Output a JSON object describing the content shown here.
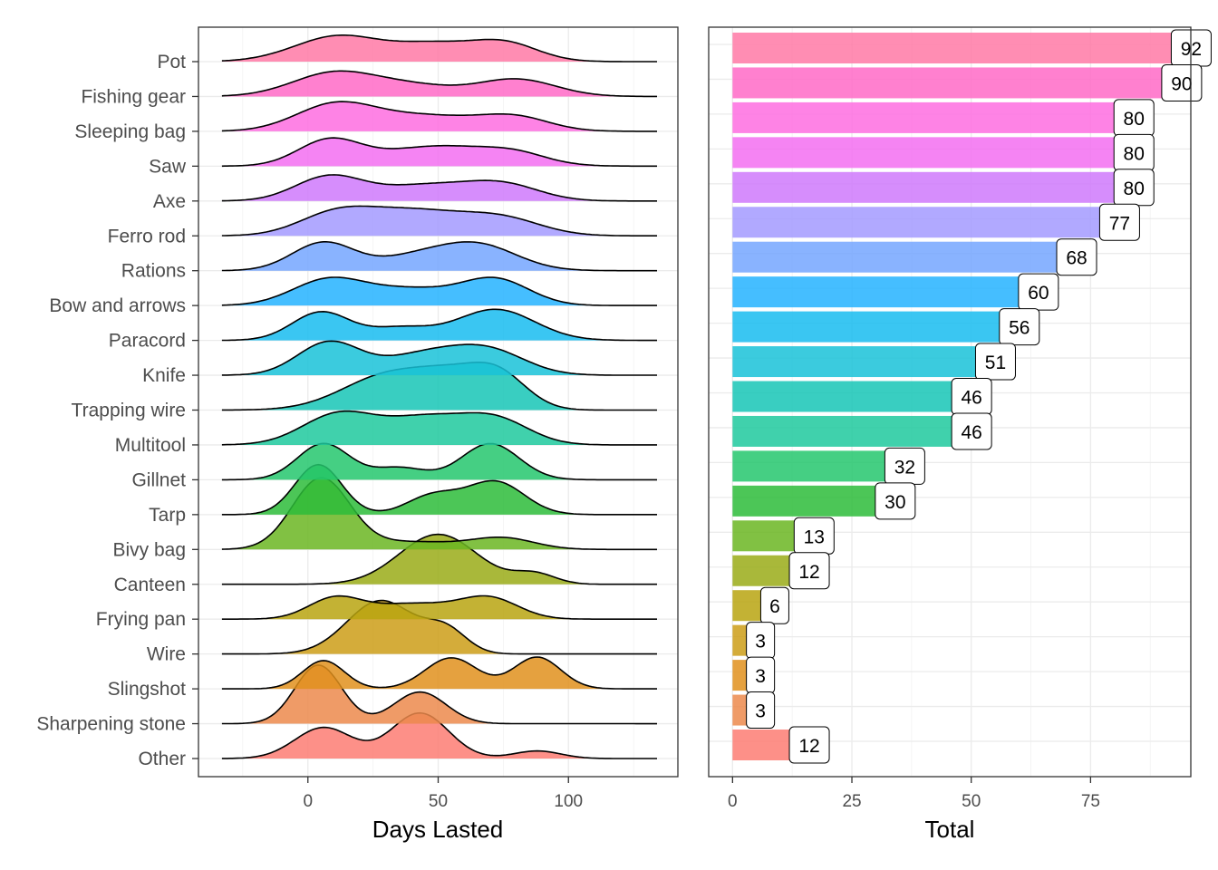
{
  "chart_data": [
    {
      "type": "ridgeline",
      "xlabel": "Days Lasted",
      "xlim": [
        -42,
        142
      ],
      "xticks": [
        0,
        50,
        100
      ],
      "grid": true,
      "categories": [
        "Pot",
        "Fishing gear",
        "Sleeping bag",
        "Saw",
        "Axe",
        "Ferro rod",
        "Rations",
        "Bow and arrows",
        "Paracord",
        "Knife",
        "Trapping wire",
        "Multitool",
        "Gillnet",
        "Tarp",
        "Bivy bag",
        "Canteen",
        "Frying pan",
        "Wire",
        "Slingshot",
        "Sharpening stone",
        "Other"
      ],
      "series": [
        {
          "category": "Pot",
          "peaks": [
            [
              12,
              0.75,
              17
            ],
            [
              48,
              0.45,
              14
            ],
            [
              75,
              0.55,
              13
            ]
          ]
        },
        {
          "category": "Fishing gear",
          "peaks": [
            [
              10,
              0.68,
              16
            ],
            [
              40,
              0.3,
              16
            ],
            [
              80,
              0.5,
              15
            ]
          ]
        },
        {
          "category": "Sleeping bag",
          "peaks": [
            [
              10,
              0.72,
              15
            ],
            [
              45,
              0.45,
              22
            ],
            [
              80,
              0.35,
              13
            ]
          ]
        },
        {
          "category": "Saw",
          "peaks": [
            [
              8,
              0.72,
              12
            ],
            [
              50,
              0.58,
              22
            ],
            [
              80,
              0.25,
              12
            ]
          ]
        },
        {
          "category": "Axe",
          "peaks": [
            [
              8,
              0.7,
              13
            ],
            [
              45,
              0.45,
              18
            ],
            [
              75,
              0.45,
              14
            ]
          ]
        },
        {
          "category": "Ferro rod",
          "peaks": [
            [
              10,
              0.55,
              14
            ],
            [
              40,
              0.72,
              20
            ],
            [
              75,
              0.45,
              15
            ]
          ]
        },
        {
          "category": "Rations",
          "peaks": [
            [
              6,
              0.82,
              12
            ],
            [
              40,
              0.35,
              14
            ],
            [
              65,
              0.75,
              15
            ]
          ]
        },
        {
          "category": "Bow and arrows",
          "peaks": [
            [
              8,
              0.75,
              14
            ],
            [
              40,
              0.45,
              16
            ],
            [
              72,
              0.75,
              13
            ]
          ]
        },
        {
          "category": "Paracord",
          "peaks": [
            [
              5,
              0.82,
              11
            ],
            [
              35,
              0.35,
              12
            ],
            [
              72,
              0.9,
              15
            ]
          ]
        },
        {
          "category": "Knife",
          "peaks": [
            [
              8,
              0.95,
              12
            ],
            [
              45,
              0.6,
              16
            ],
            [
              70,
              0.65,
              14
            ]
          ]
        },
        {
          "category": "Trapping wire",
          "peaks": [
            [
              32,
              1.05,
              18
            ],
            [
              55,
              0.6,
              12
            ],
            [
              73,
              1.0,
              11
            ]
          ]
        },
        {
          "category": "Multitool",
          "peaks": [
            [
              12,
              0.9,
              14
            ],
            [
              45,
              0.75,
              15
            ],
            [
              72,
              0.72,
              13
            ]
          ]
        },
        {
          "category": "Gillnet",
          "peaks": [
            [
              6,
              1.05,
              10
            ],
            [
              35,
              0.35,
              10
            ],
            [
              70,
              1.05,
              11
            ]
          ]
        },
        {
          "category": "Tarp",
          "peaks": [
            [
              4,
              1.45,
              9
            ],
            [
              48,
              0.55,
              10
            ],
            [
              72,
              0.95,
              11
            ]
          ]
        },
        {
          "category": "Bivy bag",
          "peaks": [
            [
              5,
              2.05,
              11
            ],
            [
              40,
              0.22,
              18
            ],
            [
              75,
              0.32,
              12
            ]
          ]
        },
        {
          "category": "Canteen",
          "peaks": [
            [
              50,
              1.45,
              15
            ],
            [
              87,
              0.3,
              8
            ]
          ]
        },
        {
          "category": "Frying pan",
          "peaks": [
            [
              10,
              0.55,
              10
            ],
            [
              40,
              0.45,
              18
            ],
            [
              70,
              0.55,
              11
            ]
          ]
        },
        {
          "category": "Wire",
          "peaks": [
            [
              28,
              1.55,
              13
            ],
            [
              53,
              0.65,
              8
            ]
          ]
        },
        {
          "category": "Slingshot",
          "peaks": [
            [
              6,
              0.82,
              8
            ],
            [
              55,
              0.9,
              10
            ],
            [
              88,
              0.92,
              9
            ]
          ]
        },
        {
          "category": "Sharpening stone",
          "peaks": [
            [
              4,
              1.7,
              9
            ],
            [
              43,
              0.92,
              10
            ]
          ]
        },
        {
          "category": "Other",
          "peaks": [
            [
              6,
              0.9,
              11
            ],
            [
              43,
              1.32,
              11
            ],
            [
              88,
              0.22,
              9
            ]
          ]
        }
      ]
    },
    {
      "type": "bar",
      "orientation": "horizontal",
      "xlabel": "Total",
      "xlim": [
        -5,
        96
      ],
      "xticks": [
        0,
        25,
        50,
        75
      ],
      "grid": true,
      "categories": [
        "Pot",
        "Fishing gear",
        "Sleeping bag",
        "Saw",
        "Axe",
        "Ferro rod",
        "Rations",
        "Bow and arrows",
        "Paracord",
        "Knife",
        "Trapping wire",
        "Multitool",
        "Gillnet",
        "Tarp",
        "Bivy bag",
        "Canteen",
        "Frying pan",
        "Wire",
        "Slingshot",
        "Sharpening stone",
        "Other"
      ],
      "values": [
        92,
        90,
        80,
        80,
        80,
        77,
        68,
        60,
        56,
        51,
        46,
        46,
        32,
        30,
        13,
        12,
        6,
        3,
        3,
        3,
        12
      ]
    }
  ],
  "colors": [
    "#ff79a6",
    "#ff6ac7",
    "#fe6de0",
    "#f36ff1",
    "#cf79fb",
    "#a39aff",
    "#74a6ff",
    "#25b3ff",
    "#17bcf0",
    "#19c2d8",
    "#16c6b6",
    "#1fc99d",
    "#25c76d",
    "#2dbc3a",
    "#6bb622",
    "#9aab18",
    "#b9a410",
    "#cc9d17",
    "#e0911d",
    "#ec8a4c",
    "#fd7c73"
  ]
}
